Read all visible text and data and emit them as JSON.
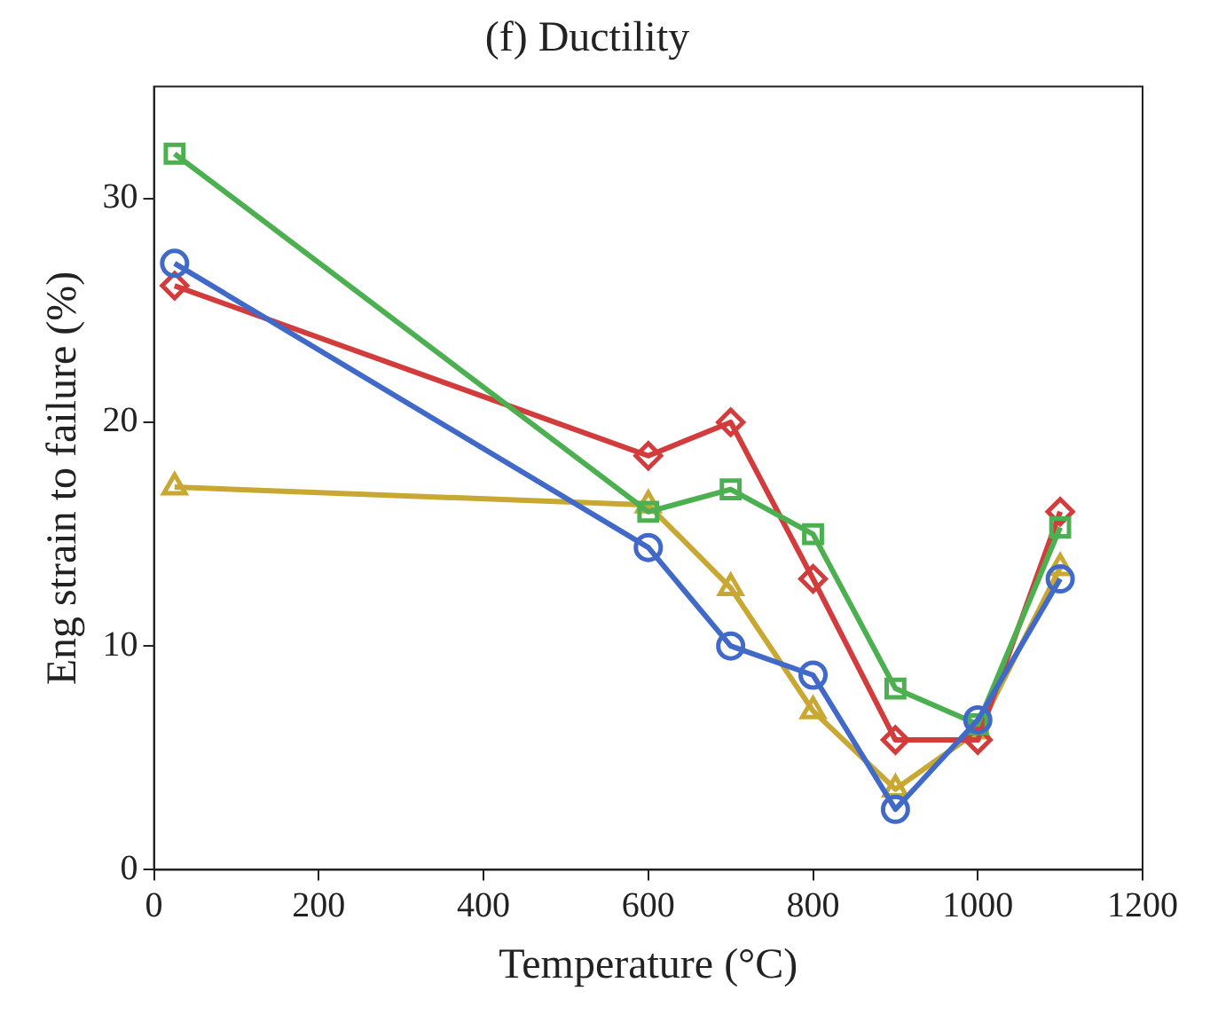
{
  "chart_data": {
    "type": "line",
    "title": "(f) Ductility",
    "xlabel": "Temperature (°C)",
    "ylabel": "Eng strain to failure (%)",
    "xlim": [
      0,
      1200
    ],
    "ylim": [
      0,
      35
    ],
    "xticks": [
      0,
      200,
      400,
      600,
      800,
      1000,
      1200
    ],
    "yticks": [
      0,
      10,
      20,
      30
    ],
    "grid": false,
    "legend": false,
    "line_style": "solid",
    "series": [
      {
        "color": "#4169c8",
        "marker": "circle",
        "x": [
          25,
          600,
          700,
          800,
          900,
          1000,
          1100
        ],
        "values": [
          27.1,
          14.4,
          10,
          8.7,
          2.7,
          6.7,
          13
        ]
      },
      {
        "color": "#4cb050",
        "marker": "square",
        "x": [
          25,
          600,
          700,
          800,
          900,
          1000,
          1100
        ],
        "values": [
          32,
          16,
          17,
          15,
          8.1,
          6.5,
          15.3
        ]
      },
      {
        "color": "#d23c3c",
        "marker": "diamond",
        "x": [
          25,
          600,
          700,
          800,
          900,
          1000,
          1100
        ],
        "values": [
          26.1,
          18.5,
          20,
          13,
          5.8,
          5.8,
          16
        ]
      },
      {
        "color": "#c8a832",
        "marker": "triangle",
        "x": [
          25,
          600,
          700,
          800,
          900,
          1000,
          1100
        ],
        "values": [
          17.1,
          16.3,
          12.6,
          7.1,
          3.6,
          6.2,
          13.5
        ]
      }
    ]
  }
}
